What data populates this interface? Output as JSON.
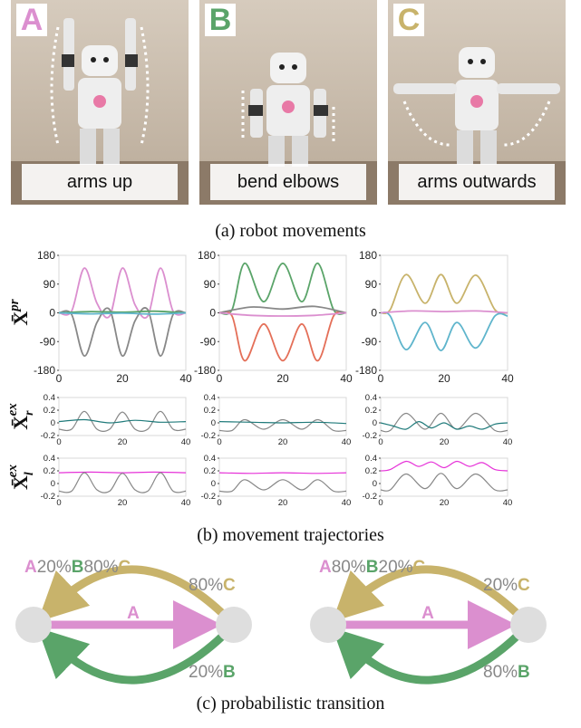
{
  "colors": {
    "pink": "#db8fcf",
    "green": "#5aa469",
    "gold": "#c8b36b",
    "gray": "#888888",
    "red": "#e46f58",
    "teal": "#5fb5cc",
    "darkteal": "#1f7a7a",
    "magenta": "#e632d8"
  },
  "photos": [
    {
      "label": "A",
      "caption": "arms up",
      "label_color": "#db8fcf"
    },
    {
      "label": "B",
      "caption": "bend elbows",
      "label_color": "#5aa469"
    },
    {
      "label": "C",
      "caption": "arms outwards",
      "label_color": "#c8b36b"
    }
  ],
  "captions": {
    "a": "(a) robot movements",
    "b": "(b) movement trajectories",
    "c": "(c) probabilistic transition"
  },
  "ylabels": {
    "pr": {
      "main": "X̄",
      "sup": "pr"
    },
    "exr": {
      "main": "X̄",
      "sup": "ex",
      "sub": "r"
    },
    "exl": {
      "main": "X̄",
      "sup": "ex",
      "sub": "l"
    }
  },
  "chart_data": [
    {
      "type": "line",
      "panel": "pr-A",
      "xlim": [
        0,
        40
      ],
      "ylim": [
        -180,
        180
      ],
      "xticks": [
        "0",
        "20",
        "40"
      ],
      "yticks": [
        "180",
        "90",
        "0",
        "-90",
        "-180"
      ],
      "series": [
        {
          "color": "#db8fcf",
          "x": [
            0,
            4,
            8,
            12,
            16,
            20,
            24,
            28,
            32,
            36,
            40
          ],
          "y": [
            0,
            5,
            140,
            30,
            -10,
            140,
            25,
            -10,
            140,
            5,
            0
          ]
        },
        {
          "color": "#888888",
          "x": [
            0,
            4,
            8,
            12,
            16,
            20,
            24,
            28,
            32,
            36,
            40
          ],
          "y": [
            0,
            -5,
            -135,
            -30,
            10,
            -135,
            -25,
            10,
            -135,
            -5,
            0
          ]
        },
        {
          "color": "#5aa469",
          "x": [
            0,
            10,
            20,
            30,
            40
          ],
          "y": [
            0,
            4,
            2,
            5,
            0
          ]
        },
        {
          "color": "#5fb5cc",
          "x": [
            0,
            10,
            20,
            30,
            40
          ],
          "y": [
            0,
            -3,
            -1,
            -4,
            0
          ]
        }
      ]
    },
    {
      "type": "line",
      "panel": "pr-B",
      "xlim": [
        0,
        40
      ],
      "ylim": [
        -180,
        180
      ],
      "xticks": [
        "0",
        "20",
        "40"
      ],
      "yticks": [
        "180",
        "90",
        "0",
        "-90",
        "-180"
      ],
      "series": [
        {
          "color": "#5aa469",
          "x": [
            0,
            4,
            8,
            14,
            20,
            26,
            31,
            36,
            40
          ],
          "y": [
            0,
            10,
            155,
            35,
            155,
            35,
            155,
            10,
            0
          ]
        },
        {
          "color": "#e46f58",
          "x": [
            0,
            4,
            8,
            14,
            20,
            26,
            31,
            36,
            40
          ],
          "y": [
            0,
            -10,
            -150,
            -35,
            -150,
            -35,
            -150,
            -10,
            0
          ]
        },
        {
          "color": "#888888",
          "x": [
            0,
            10,
            20,
            30,
            40
          ],
          "y": [
            0,
            18,
            12,
            20,
            0
          ]
        },
        {
          "color": "#db8fcf",
          "x": [
            0,
            10,
            20,
            30,
            40
          ],
          "y": [
            0,
            -8,
            -10,
            -8,
            0
          ]
        }
      ]
    },
    {
      "type": "line",
      "panel": "pr-C",
      "xlim": [
        0,
        40
      ],
      "ylim": [
        -180,
        180
      ],
      "xticks": [
        "0",
        "20",
        "40"
      ],
      "yticks": [
        "180",
        "90",
        "0",
        "-90",
        "-180"
      ],
      "series": [
        {
          "color": "#c8b36b",
          "x": [
            0,
            3,
            8,
            14,
            19,
            24,
            30,
            36,
            40
          ],
          "y": [
            0,
            10,
            120,
            30,
            120,
            30,
            118,
            10,
            0
          ]
        },
        {
          "color": "#5fb5cc",
          "x": [
            0,
            3,
            8,
            14,
            19,
            24,
            30,
            36,
            40
          ],
          "y": [
            0,
            -10,
            -115,
            -30,
            -118,
            -30,
            -110,
            -10,
            -10
          ]
        },
        {
          "color": "#db8fcf",
          "x": [
            0,
            10,
            20,
            30,
            40
          ],
          "y": [
            0,
            6,
            4,
            6,
            0
          ]
        }
      ]
    },
    {
      "type": "line",
      "panel": "exr-A",
      "xlim": [
        0,
        40
      ],
      "ylim": [
        -0.2,
        0.4
      ],
      "xticks": [
        "0",
        "20",
        "40"
      ],
      "yticks": [
        "0.4",
        "0.2",
        "0",
        "-0.2"
      ],
      "series": [
        {
          "color": "#888888",
          "x": [
            0,
            4,
            8,
            12,
            16,
            20,
            24,
            28,
            32,
            36,
            40
          ],
          "y": [
            -0.1,
            -0.1,
            0.18,
            -0.1,
            -0.1,
            0.17,
            -0.1,
            -0.1,
            0.18,
            -0.1,
            -0.1
          ]
        },
        {
          "color": "#1f7a7a",
          "x": [
            0,
            8,
            16,
            24,
            32,
            40
          ],
          "y": [
            0.02,
            0.05,
            0.0,
            0.04,
            0.01,
            0.02
          ]
        }
      ]
    },
    {
      "type": "line",
      "panel": "exr-B",
      "xlim": [
        0,
        40
      ],
      "ylim": [
        -0.2,
        0.4
      ],
      "xticks": [
        "0",
        "20",
        "40"
      ],
      "yticks": [
        "0.4",
        "0.2",
        "0",
        "-0.2"
      ],
      "series": [
        {
          "color": "#888888",
          "x": [
            0,
            4,
            8,
            14,
            20,
            26,
            31,
            36,
            40
          ],
          "y": [
            -0.12,
            -0.12,
            0.05,
            -0.1,
            0.05,
            -0.1,
            0.05,
            -0.12,
            -0.12
          ]
        },
        {
          "color": "#1f7a7a",
          "x": [
            0,
            10,
            20,
            30,
            40
          ],
          "y": [
            0.02,
            0.01,
            0.0,
            0.01,
            -0.01
          ]
        }
      ]
    },
    {
      "type": "line",
      "panel": "exr-C",
      "xlim": [
        0,
        40
      ],
      "ylim": [
        -0.2,
        0.4
      ],
      "xticks": [
        "0",
        "20",
        "40"
      ],
      "yticks": [
        "0.4",
        "0.2",
        "0",
        "-0.2"
      ],
      "series": [
        {
          "color": "#888888",
          "x": [
            0,
            3,
            8,
            14,
            19,
            24,
            30,
            36,
            40
          ],
          "y": [
            -0.12,
            -0.12,
            0.15,
            -0.1,
            0.15,
            -0.1,
            0.15,
            -0.12,
            -0.12
          ]
        },
        {
          "color": "#1f7a7a",
          "x": [
            0,
            4,
            8,
            12,
            16,
            20,
            24,
            28,
            32,
            36,
            40
          ],
          "y": [
            0.0,
            -0.05,
            -0.1,
            0.02,
            -0.08,
            0.0,
            -0.1,
            -0.05,
            -0.1,
            -0.02,
            0.0
          ]
        }
      ]
    },
    {
      "type": "line",
      "panel": "exl-A",
      "xlim": [
        0,
        40
      ],
      "ylim": [
        -0.2,
        0.4
      ],
      "xticks": [
        "0",
        "20",
        "40"
      ],
      "yticks": [
        "0.4",
        "0.2",
        "0",
        "-0.2"
      ],
      "series": [
        {
          "color": "#e632d8",
          "x": [
            0,
            10,
            20,
            30,
            40
          ],
          "y": [
            0.17,
            0.18,
            0.17,
            0.18,
            0.17
          ]
        },
        {
          "color": "#888888",
          "x": [
            0,
            4,
            8,
            12,
            16,
            20,
            24,
            28,
            32,
            36,
            40
          ],
          "y": [
            -0.12,
            -0.12,
            0.17,
            -0.1,
            -0.12,
            0.16,
            -0.1,
            -0.12,
            0.17,
            -0.12,
            -0.12
          ]
        }
      ]
    },
    {
      "type": "line",
      "panel": "exl-B",
      "xlim": [
        0,
        40
      ],
      "ylim": [
        -0.2,
        0.4
      ],
      "xticks": [
        "0",
        "20",
        "40"
      ],
      "yticks": [
        "0.4",
        "0.2",
        "0",
        "-0.2"
      ],
      "series": [
        {
          "color": "#e632d8",
          "x": [
            0,
            10,
            20,
            30,
            40
          ],
          "y": [
            0.17,
            0.16,
            0.17,
            0.16,
            0.17
          ]
        },
        {
          "color": "#888888",
          "x": [
            0,
            4,
            8,
            14,
            20,
            26,
            31,
            36,
            40
          ],
          "y": [
            -0.12,
            -0.12,
            0.06,
            -0.1,
            0.06,
            -0.1,
            0.06,
            -0.12,
            -0.12
          ]
        }
      ]
    },
    {
      "type": "line",
      "panel": "exl-C",
      "xlim": [
        0,
        40
      ],
      "ylim": [
        -0.2,
        0.4
      ],
      "xticks": [
        "0",
        "20",
        "40"
      ],
      "yticks": [
        "0.4",
        "0.2",
        "0",
        "-0.2"
      ],
      "series": [
        {
          "color": "#e632d8",
          "x": [
            0,
            3,
            8,
            12,
            16,
            20,
            24,
            28,
            32,
            36,
            40
          ],
          "y": [
            0.2,
            0.22,
            0.35,
            0.27,
            0.34,
            0.25,
            0.35,
            0.27,
            0.33,
            0.22,
            0.2
          ]
        },
        {
          "color": "#888888",
          "x": [
            0,
            3,
            8,
            14,
            19,
            24,
            30,
            36,
            40
          ],
          "y": [
            -0.1,
            -0.1,
            0.15,
            -0.08,
            0.16,
            -0.08,
            0.15,
            -0.1,
            -0.1
          ]
        }
      ]
    }
  ],
  "graphs": [
    {
      "top_parts": [
        [
          "A",
          "pink"
        ],
        [
          "20%",
          "gray"
        ],
        [
          "B",
          "green"
        ],
        [
          "80%",
          "gray"
        ],
        [
          "C",
          "gold"
        ]
      ],
      "c_edge": [
        [
          "80%",
          "gray"
        ],
        [
          "C",
          "gold"
        ]
      ],
      "a_edge": [
        [
          "A",
          "pink"
        ]
      ],
      "b_edge": [
        [
          "20%",
          "gray"
        ],
        [
          "B",
          "green"
        ]
      ]
    },
    {
      "top_parts": [
        [
          "A",
          "pink"
        ],
        [
          "80%",
          "gray"
        ],
        [
          "B",
          "green"
        ],
        [
          "20%",
          "gray"
        ],
        [
          "C",
          "gold"
        ]
      ],
      "c_edge": [
        [
          "20%",
          "gray"
        ],
        [
          "C",
          "gold"
        ]
      ],
      "a_edge": [
        [
          "A",
          "pink"
        ]
      ],
      "b_edge": [
        [
          "80%",
          "gray"
        ],
        [
          "B",
          "green"
        ]
      ]
    }
  ]
}
